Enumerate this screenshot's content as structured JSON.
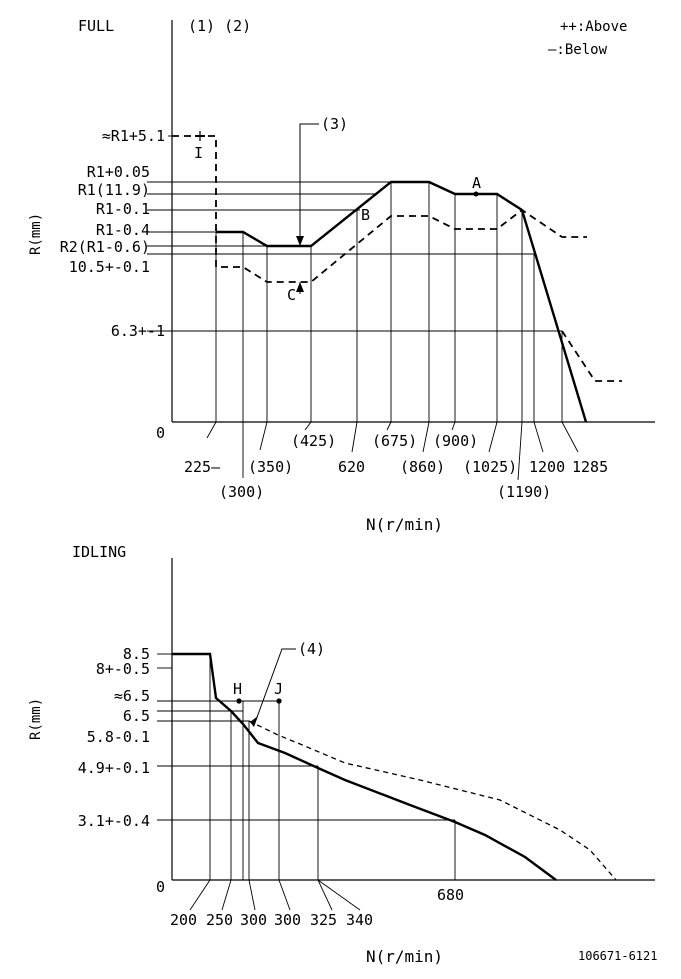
{
  "full": {
    "title": "FULL",
    "notes": "(1) (2)",
    "legend_above": "++:Above",
    "legend_below": "—:Below",
    "y_axis_label": "R(mm)",
    "x_axis_label": "N(r/min)",
    "origin": "0",
    "y_labels": [
      "≈R1+5.1",
      "R1+0.05",
      "R1(11.9)",
      "R1-0.1",
      "R1-0.4",
      "R2(R1-0.6)",
      "10.5+-0.1",
      "6.3+-1"
    ],
    "x_labels": [
      "225—",
      "(300)",
      "(350)",
      "(425)",
      "620",
      "(675)",
      "(860)",
      "(900)",
      "(1025)",
      "(1190)",
      "1200",
      "1285"
    ],
    "annotations": {
      "note3": "(3)",
      "point_a": "A",
      "point_b": "B",
      "point_c": "C",
      "point_i": "I"
    }
  },
  "idling": {
    "title": "IDLING",
    "y_axis_label": "R(mm)",
    "x_axis_label": "N(r/min)",
    "origin": "0",
    "y_labels": [
      "8.5",
      "8+-0.5",
      "≈6.5",
      "6.5",
      "5.8-0.1",
      "4.9+-0.1",
      "3.1+-0.4"
    ],
    "x_labels": [
      "200",
      "250",
      "300",
      "300",
      "325",
      "340",
      "680"
    ],
    "annotations": {
      "note4": "(4)",
      "point_h": "H",
      "point_j": "J"
    }
  },
  "drawing_number": "106671-6121"
}
